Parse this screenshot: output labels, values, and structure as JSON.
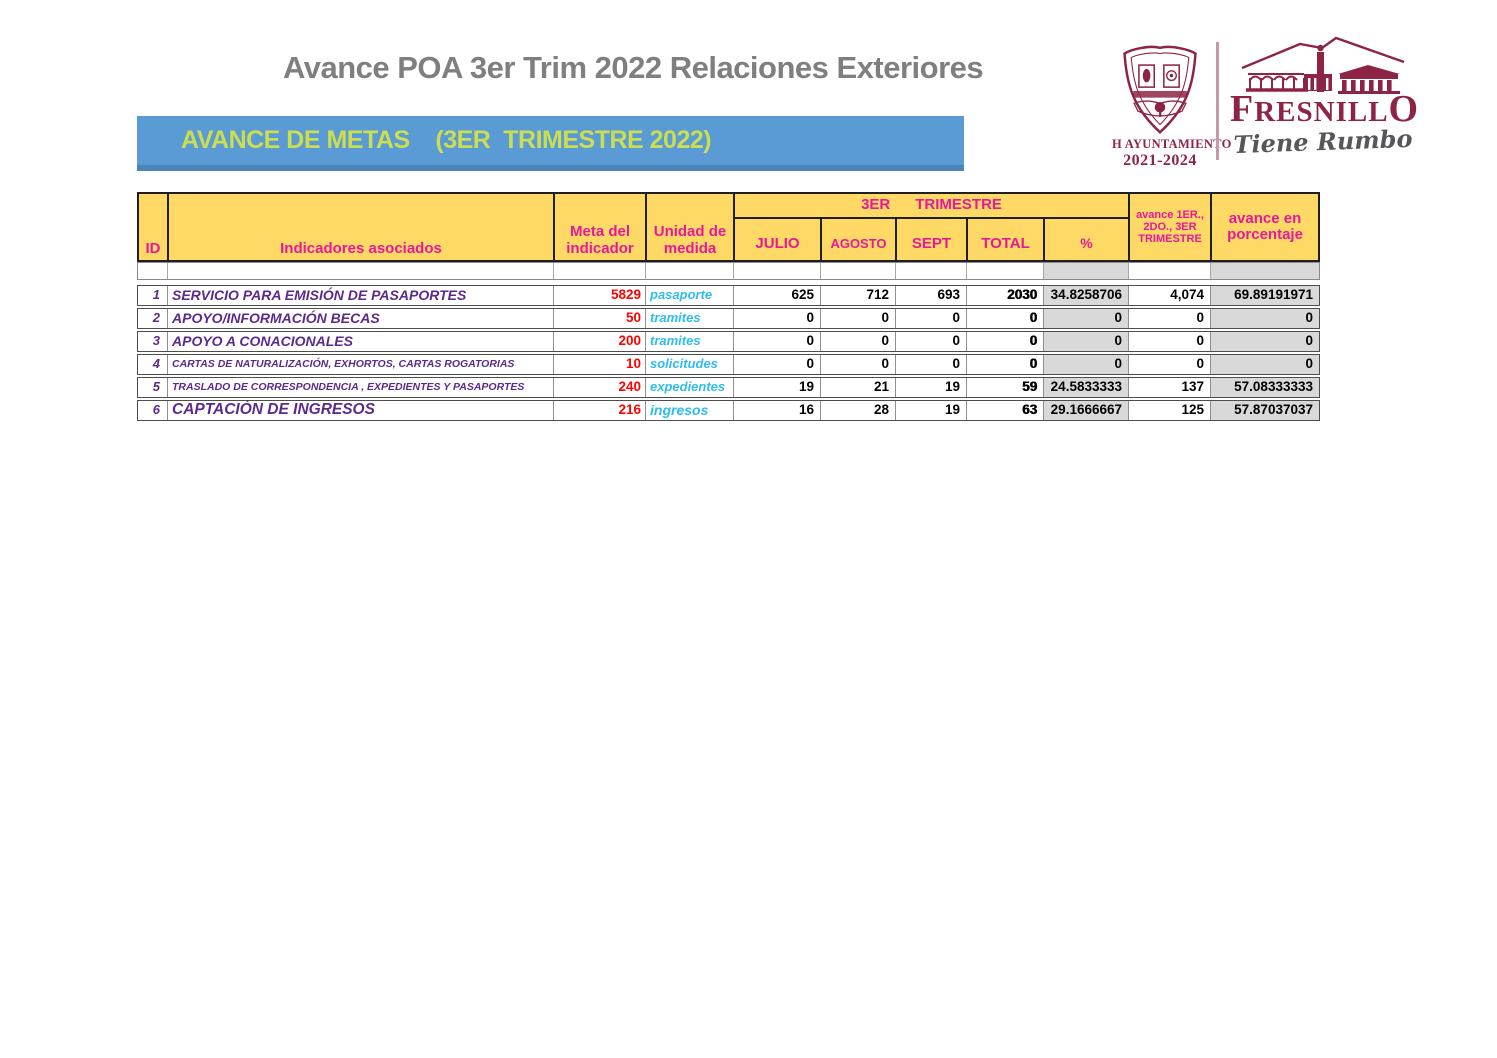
{
  "page": {
    "title": "Avance POA 3er Trim 2022 Relaciones Exteriores"
  },
  "logo": {
    "seal_caption": "H AYUNTAMIENTO",
    "seal_years": "2021-2024",
    "wordmark": "FRESNILLO",
    "tagline": "Tiene Rumbo",
    "crest_icon": "municipal-seal-icon",
    "building_icon": "colonnade-building-icon"
  },
  "banner": {
    "text": "AVANCE DE METAS    (3ER  TRIMESTRE 2022)"
  },
  "table": {
    "header": {
      "id": "ID",
      "indicators": "Indicadores asociados",
      "meta": "Meta del indicador",
      "unit": "Unidad de medida",
      "quarter_group": "3ER      TRIMESTRE",
      "julio": "JULIO",
      "agosto": "AGOSTO",
      "sept": "SEPT",
      "total": "TOTAL",
      "pct": "%",
      "avance_multi": "avance 1ER., 2DO., 3ER TRIMESTRE",
      "avance_pct": "avance en porcentaje"
    },
    "rows": [
      {
        "id": "1",
        "indicator": "SERVICIO PARA EMISIÓN DE PASAPORTES",
        "meta": "5829",
        "unit": "pasaporte",
        "julio": "625",
        "agosto": "712",
        "sept": "693",
        "total": "2030",
        "pct": "34.8258706",
        "avance": "4,074",
        "avance_pct": "69.89191971"
      },
      {
        "id": "2",
        "indicator": "APOYO/INFORMACIÓN BECAS",
        "meta": "50",
        "unit": "tramites",
        "julio": "0",
        "agosto": "0",
        "sept": "0",
        "total": "0",
        "pct": "0",
        "avance": "0",
        "avance_pct": "0"
      },
      {
        "id": "3",
        "indicator": "APOYO A CONACIONALES",
        "meta": "200",
        "unit": "tramites",
        "julio": "0",
        "agosto": "0",
        "sept": "0",
        "total": "0",
        "pct": "0",
        "avance": "0",
        "avance_pct": "0"
      },
      {
        "id": "4",
        "indicator": "CARTAS DE NATURALIZACIÓN, EXHORTOS, CARTAS ROGATORIAS",
        "meta": "10",
        "unit": "solicitudes",
        "julio": "0",
        "agosto": "0",
        "sept": "0",
        "total": "0",
        "pct": "0",
        "avance": "0",
        "avance_pct": "0"
      },
      {
        "id": "5",
        "indicator": "TRASLADO DE CORRESPONDENCIA , EXPEDIENTES Y PASAPORTES",
        "meta": "240",
        "unit": "expedientes",
        "julio": "19",
        "agosto": "21",
        "sept": "19",
        "total": "59",
        "pct": "24.5833333",
        "avance": "137",
        "avance_pct": "57.08333333"
      },
      {
        "id": "6",
        "indicator": "CAPTACIÓN DE INGRESOS",
        "meta": "216",
        "unit": "ingresos",
        "julio": "16",
        "agosto": "28",
        "sept": "19",
        "total": "63",
        "pct": "29.1666667",
        "avance": "125",
        "avance_pct": "57.87037037"
      }
    ]
  },
  "colors": {
    "banner_bg": "#5B9BD5",
    "banner_edge": "#4A85B8",
    "banner_text": "#CBDD51",
    "header_bg": "#FFD966",
    "header_text": "#E8189B",
    "purple": "#5B2A8C",
    "red": "#FF0000",
    "cyan": "#2FBCEF",
    "gray_fill": "#D9D9D9",
    "maroon": "#8E2443",
    "title_gray": "#7F7F7F",
    "tagline_gray": "#56575A"
  }
}
